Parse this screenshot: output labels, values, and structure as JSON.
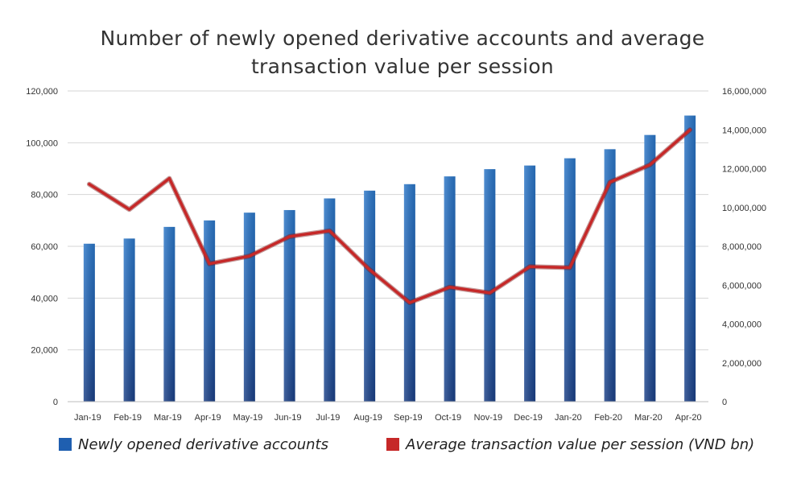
{
  "chart_data": {
    "type": "bar",
    "title_lines": [
      "Number of newly opened derivative accounts and average",
      "transaction value per session"
    ],
    "categories": [
      "Jan-19",
      "Feb-19",
      "Mar-19",
      "Apr-19",
      "May-19",
      "Jun-19",
      "Jul-19",
      "Aug-19",
      "Sep-19",
      "Oct-19",
      "Nov-19",
      "Dec-19",
      "Jan-20",
      "Feb-20",
      "Mar-20",
      "Apr-20"
    ],
    "series": [
      {
        "name": "Newly opened derivative accounts",
        "type": "bar",
        "axis": "left",
        "color": "#1f5fb0",
        "values": [
          61000,
          63000,
          67500,
          70000,
          73000,
          74000,
          78500,
          81500,
          84000,
          87000,
          89800,
          91200,
          94000,
          97500,
          103000,
          110500
        ]
      },
      {
        "name": "Average transaction value per session (VND bn)",
        "type": "line",
        "axis": "right",
        "color": "#c62828",
        "values": [
          11200000,
          9900000,
          11500000,
          7100000,
          7500000,
          8500000,
          8800000,
          6800000,
          5100000,
          5900000,
          5600000,
          6950000,
          6900000,
          11300000,
          12200000,
          14000000
        ]
      }
    ],
    "left_axis": {
      "ylim": [
        0,
        120000
      ],
      "ticks": [
        0,
        20000,
        40000,
        60000,
        80000,
        100000,
        120000
      ],
      "tick_labels": [
        "0",
        "20,000",
        "40,000",
        "60,000",
        "80,000",
        "100,000",
        "120,000"
      ]
    },
    "right_axis": {
      "ylim": [
        0,
        16000000
      ],
      "ticks": [
        0,
        2000000,
        4000000,
        6000000,
        8000000,
        10000000,
        12000000,
        14000000,
        16000000
      ],
      "tick_labels": [
        "0",
        "2,000,000",
        "4,000,000",
        "6,000,000",
        "8,000,000",
        "10,000,000",
        "12,000,000",
        "14,000,000",
        "16,000,000"
      ]
    },
    "grid": true,
    "legend_position": "bottom"
  }
}
